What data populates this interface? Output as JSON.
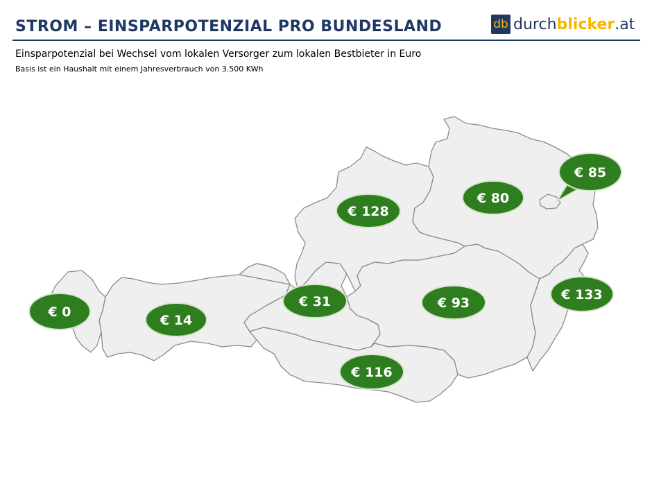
{
  "title": "STROM – EINSPARPOTENZIAL PRO BUNDESLAND",
  "subtitle": "Einsparpotenzial bei Wechsel vom lokalen Versorger zum lokalen Bestbieter in Euro",
  "note": "Basis ist ein Haushalt mit einem Jahresverbrauch von 3.500 KWh",
  "logo": {
    "mark": "db",
    "part1": "durch",
    "part2": "blicker",
    "part3": ".at",
    "mark_color": "#1f3864",
    "accent_color": "#f5b800"
  },
  "colors": {
    "bubble": "#2e7d1f",
    "state_fill": "#efefef",
    "state_stroke": "#8a8a8a",
    "title": "#1f3864"
  },
  "regions": [
    {
      "id": "vorarlberg",
      "label": "€ 0"
    },
    {
      "id": "tirol",
      "label": "€ 14"
    },
    {
      "id": "salzburg",
      "label": "€ 31"
    },
    {
      "id": "oberoesterreich",
      "label": "€ 128"
    },
    {
      "id": "niederoesterreich",
      "label": "€ 80"
    },
    {
      "id": "wien",
      "label": "€ 85"
    },
    {
      "id": "steiermark",
      "label": "€ 93"
    },
    {
      "id": "kaernten",
      "label": "€ 116"
    },
    {
      "id": "burgenland",
      "label": "€ 133"
    }
  ]
}
